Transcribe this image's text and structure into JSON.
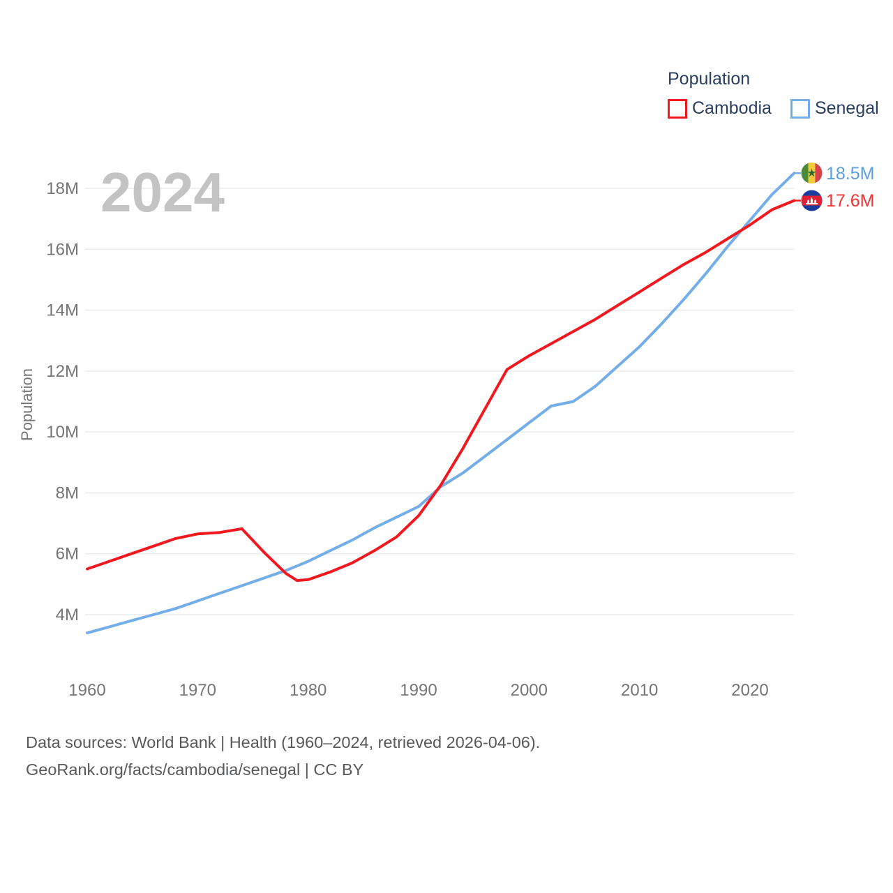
{
  "watermark": "2024",
  "legend": {
    "title": "Population",
    "items": [
      {
        "label": "Cambodia",
        "color": "#f1191f"
      },
      {
        "label": "Senegal",
        "color": "#74aee8"
      }
    ]
  },
  "end_labels": [
    {
      "series": "Senegal",
      "value": "18.5M",
      "color": "#5b9fdf",
      "flag": "senegal-flag"
    },
    {
      "series": "Cambodia",
      "value": "17.6M",
      "color": "#ee3333",
      "flag": "cambodia-flag"
    }
  ],
  "footer": {
    "line1": "Data sources: World Bank | Health (1960–2024, retrieved 2026-04-06).",
    "line2": "GeoRank.org/facts/cambodia/senegal | CC BY"
  },
  "chart_data": {
    "type": "line",
    "title": "Population",
    "xlabel": "",
    "ylabel": "Population",
    "x_range": [
      1960,
      2024
    ],
    "y_range": [
      3,
      19
    ],
    "grid": "horizontal-only",
    "legend_position": "top-right",
    "xticks": [
      1960,
      1970,
      1980,
      1990,
      2000,
      2010,
      2020
    ],
    "ytick_values": [
      4,
      6,
      8,
      10,
      12,
      14,
      16,
      18
    ],
    "yticks": [
      "4M",
      "6M",
      "8M",
      "10M",
      "12M",
      "14M",
      "16M",
      "18M"
    ],
    "x": [
      1960,
      1962,
      1964,
      1966,
      1968,
      1970,
      1972,
      1974,
      1976,
      1978,
      1979,
      1980,
      1982,
      1984,
      1986,
      1988,
      1990,
      1992,
      1994,
      1996,
      1998,
      2000,
      2002,
      2004,
      2006,
      2008,
      2010,
      2012,
      2014,
      2016,
      2018,
      2020,
      2022,
      2024
    ],
    "series": [
      {
        "name": "Cambodia",
        "color": "#f1191f",
        "end_value": 17.6,
        "values": [
          5.5,
          5.75,
          6.0,
          6.25,
          6.5,
          6.65,
          6.7,
          6.82,
          6.05,
          5.35,
          5.12,
          5.15,
          5.4,
          5.7,
          6.1,
          6.55,
          7.25,
          8.25,
          9.45,
          10.75,
          12.05,
          12.5,
          12.9,
          13.3,
          13.7,
          14.15,
          14.6,
          15.05,
          15.5,
          15.9,
          16.35,
          16.8,
          17.3,
          17.6
        ]
      },
      {
        "name": "Senegal",
        "color": "#74aee8",
        "end_value": 18.5,
        "values": [
          3.4,
          3.6,
          3.8,
          4.0,
          4.2,
          4.45,
          4.7,
          4.95,
          5.2,
          5.45,
          5.6,
          5.75,
          6.1,
          6.45,
          6.85,
          7.2,
          7.55,
          8.2,
          8.65,
          9.2,
          9.75,
          10.3,
          10.85,
          11.0,
          11.5,
          12.15,
          12.8,
          13.55,
          14.35,
          15.2,
          16.1,
          16.95,
          17.8,
          18.5
        ]
      }
    ]
  }
}
